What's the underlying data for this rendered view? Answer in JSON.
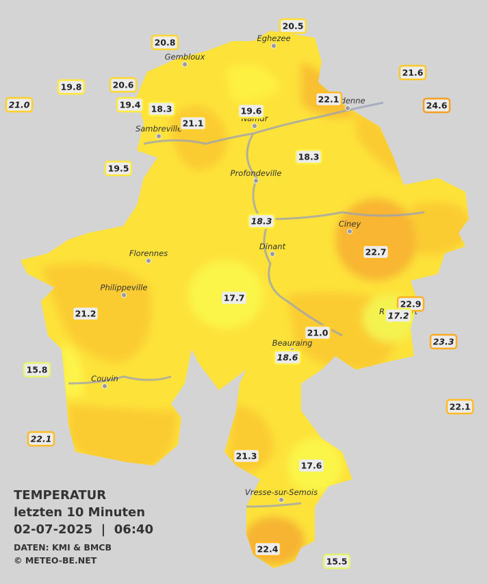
{
  "title": "TEMPERATUR",
  "subtitle": "letzten 10 Minuten",
  "datetime": "02-07-2025  |  06:40",
  "source": "DATEN: KMI & BMCB",
  "credit": "© METEO-BE.NET",
  "cities": [
    "Eghezee",
    "Gembloux",
    "Andenne",
    "Namur",
    "Sambreville",
    "Profondeville",
    "Ciney",
    "Dinant",
    "Florennes",
    "Philippeville",
    "Rochefort",
    "Beauraing",
    "Couvin",
    "Vresse-sur-Semois"
  ],
  "stations": [
    {
      "label": "20.5",
      "color": "#ffdc2e",
      "italic": false
    },
    {
      "label": "20.8",
      "color": "#ffd52a",
      "italic": false
    },
    {
      "label": "19.8",
      "color": "#ffe838",
      "italic": false
    },
    {
      "label": "20.6",
      "color": "#ffd82c",
      "italic": false
    },
    {
      "label": "21.0",
      "color": "#ffcf28",
      "italic": true
    },
    {
      "label": "19.4",
      "color": "#ffeb3c",
      "italic": false
    },
    {
      "label": "18.3",
      "color": "#fff040",
      "italic": false
    },
    {
      "label": "21.1",
      "color": "#ffcf28",
      "italic": false
    },
    {
      "label": "19.6",
      "color": "#ffe838",
      "italic": false
    },
    {
      "label": "22.1",
      "color": "#ffbb22",
      "italic": false
    },
    {
      "label": "21.6",
      "color": "#ffc826",
      "italic": false
    },
    {
      "label": "24.6",
      "color": "#f5a020",
      "italic": false
    },
    {
      "label": "18.3",
      "color": "#fff040",
      "italic": false
    },
    {
      "label": "19.5",
      "color": "#ffe838",
      "italic": false
    },
    {
      "label": "18.3",
      "color": "#fff040",
      "italic": true
    },
    {
      "label": "22.7",
      "color": "#ffb422",
      "italic": false
    },
    {
      "label": "17.7",
      "color": "#f8f54a",
      "italic": false
    },
    {
      "label": "21.2",
      "color": "#ffcc28",
      "italic": false
    },
    {
      "label": "22.9",
      "color": "#ffb020",
      "italic": false
    },
    {
      "label": "17.2",
      "color": "#f4f54e",
      "italic": true
    },
    {
      "label": "21.0",
      "color": "#ffcf28",
      "italic": false
    },
    {
      "label": "23.3",
      "color": "#ffaa20",
      "italic": true
    },
    {
      "label": "18.6",
      "color": "#ffef40",
      "italic": true
    },
    {
      "label": "15.8",
      "color": "#e8f46a",
      "italic": false
    },
    {
      "label": "22.1",
      "color": "#ffbb22",
      "italic": false
    },
    {
      "label": "22.1",
      "color": "#ffbb22",
      "italic": true
    },
    {
      "label": "21.3",
      "color": "#ffcc28",
      "italic": false
    },
    {
      "label": "17.6",
      "color": "#f6f54c",
      "italic": false
    },
    {
      "label": "22.4",
      "color": "#ffb622",
      "italic": false
    },
    {
      "label": "15.5",
      "color": "#e6f46c",
      "italic": false
    }
  ]
}
